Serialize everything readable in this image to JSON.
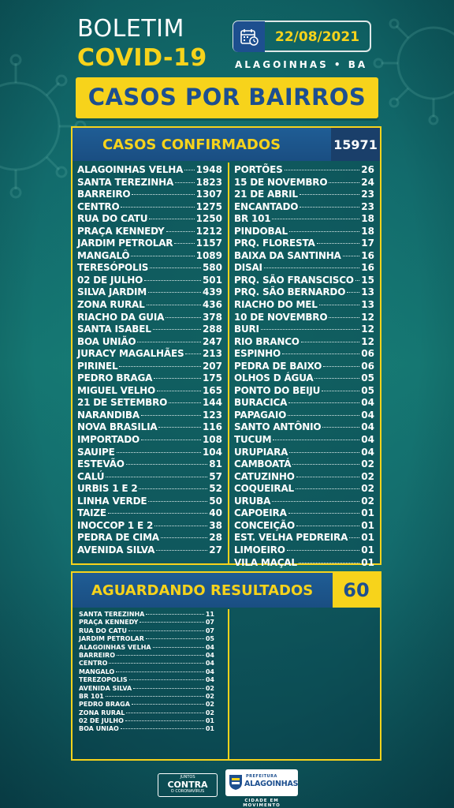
{
  "header": {
    "title": "BOLETIM",
    "subtitle": "COVID-19",
    "date": "22/08/2021",
    "city": "ALAGOINHAS • BA",
    "calendar_icon": "calendar-clock-icon"
  },
  "banner": {
    "label": "CASOS POR BAIRROS"
  },
  "confirmed": {
    "label": "CASOS CONFIRMADOS",
    "total": "15971",
    "left": [
      {
        "name": "ALAGOINHAS VELHA",
        "value": "1948"
      },
      {
        "name": "SANTA TEREZINHA",
        "value": "1823"
      },
      {
        "name": "BARREIRO",
        "value": "1307"
      },
      {
        "name": "CENTRO",
        "value": "1275"
      },
      {
        "name": "RUA DO CATU",
        "value": "1250"
      },
      {
        "name": "PRAÇA KENNEDY",
        "value": "1212"
      },
      {
        "name": "JARDIM PETROLAR",
        "value": "1157"
      },
      {
        "name": "MANGALÔ",
        "value": "1089"
      },
      {
        "name": "TERESÓPOLIS",
        "value": "580"
      },
      {
        "name": "02 DE JULHO",
        "value": "501"
      },
      {
        "name": "SILVA JARDIM",
        "value": "439"
      },
      {
        "name": "ZONA RURAL",
        "value": "436"
      },
      {
        "name": "RIACHO DA GUIA",
        "value": "378"
      },
      {
        "name": "SANTA ISABEL",
        "value": "288"
      },
      {
        "name": "BOA UNIÃO",
        "value": "247"
      },
      {
        "name": "JURACY MAGALHÃES",
        "value": "213"
      },
      {
        "name": "PIRINEL",
        "value": "207"
      },
      {
        "name": "PEDRO BRAGA",
        "value": "175"
      },
      {
        "name": "MIGUEL VELHO",
        "value": "165"
      },
      {
        "name": "21 DE SETEMBRO",
        "value": "144"
      },
      {
        "name": "NARANDIBA",
        "value": "123"
      },
      {
        "name": "NOVA BRASILIA",
        "value": "116"
      },
      {
        "name": "IMPORTADO",
        "value": "108"
      },
      {
        "name": "SAUIPE",
        "value": "104"
      },
      {
        "name": "ESTEVÃO",
        "value": "81"
      },
      {
        "name": "CALÚ",
        "value": "57"
      },
      {
        "name": "URBIS 1 E 2",
        "value": "52"
      },
      {
        "name": "LINHA VERDE",
        "value": "50"
      },
      {
        "name": "TAIZE",
        "value": "40"
      },
      {
        "name": "INOCCOP 1 E 2",
        "value": "38"
      },
      {
        "name": "PEDRA DE CIMA",
        "value": "28"
      },
      {
        "name": "AVENIDA SILVA",
        "value": "27"
      }
    ],
    "right": [
      {
        "name": "PORTÕES",
        "value": "26"
      },
      {
        "name": "15 DE NOVEMBRO",
        "value": "24"
      },
      {
        "name": "21 DE ABRIL",
        "value": "23"
      },
      {
        "name": "ENCANTADO",
        "value": "23"
      },
      {
        "name": "BR 101",
        "value": "18"
      },
      {
        "name": "PINDOBAL",
        "value": "18"
      },
      {
        "name": "PRQ. FLORESTA",
        "value": "17"
      },
      {
        "name": "BAIXA DA SANTINHA",
        "value": "16"
      },
      {
        "name": "DISAI",
        "value": "16"
      },
      {
        "name": "PRQ. SÃO FRANSCISCO",
        "value": "15"
      },
      {
        "name": "PRQ. SÃO BERNARDO",
        "value": "13"
      },
      {
        "name": "RIACHO DO MEL",
        "value": "13"
      },
      {
        "name": "10 DE NOVEMBRO",
        "value": "12"
      },
      {
        "name": "BURI",
        "value": "12"
      },
      {
        "name": "RIO BRANCO",
        "value": "12"
      },
      {
        "name": "ESPINHO",
        "value": "06"
      },
      {
        "name": "PEDRA DE BAIXO",
        "value": "06"
      },
      {
        "name": "OLHOS D ÁGUA",
        "value": "05"
      },
      {
        "name": "PONTO DO BEIJU",
        "value": "05"
      },
      {
        "name": "BURACICA",
        "value": "04"
      },
      {
        "name": "PAPAGAIO",
        "value": "04"
      },
      {
        "name": "SANTO ANTÔNIO",
        "value": "04"
      },
      {
        "name": "TUCUM",
        "value": "04"
      },
      {
        "name": "URUPIARA",
        "value": "04"
      },
      {
        "name": "CAMBOATÁ",
        "value": "02"
      },
      {
        "name": "CATUZINHO",
        "value": "02"
      },
      {
        "name": "COQUEIRAL",
        "value": "02"
      },
      {
        "name": "URUBA",
        "value": "02"
      },
      {
        "name": "CAPOEIRA",
        "value": "01"
      },
      {
        "name": "CONCEIÇÃO",
        "value": "01"
      },
      {
        "name": "EST. VELHA PEDREIRA",
        "value": "01"
      },
      {
        "name": "LIMOEIRO",
        "value": "01"
      },
      {
        "name": "VILA MAÇAL",
        "value": "01"
      }
    ]
  },
  "awaiting": {
    "label": "AGUARDANDO RESULTADOS",
    "total": "60",
    "rows": [
      {
        "name": "SANTA TEREZINHA",
        "value": "11"
      },
      {
        "name": "PRAÇA KENNEDY",
        "value": "07"
      },
      {
        "name": "RUA DO CATU",
        "value": "07"
      },
      {
        "name": "JARDIM PETROLAR",
        "value": "05"
      },
      {
        "name": "ALAGOINHAS VELHA",
        "value": "04"
      },
      {
        "name": "BARREIRO",
        "value": "04"
      },
      {
        "name": "CENTRO",
        "value": "04"
      },
      {
        "name": "MANGALO",
        "value": "04"
      },
      {
        "name": "TEREZOPOLIS",
        "value": "04"
      },
      {
        "name": "AVENIDA SILVA",
        "value": "02"
      },
      {
        "name": "BR 101",
        "value": "02"
      },
      {
        "name": "PEDRO BRAGA",
        "value": "02"
      },
      {
        "name": "ZONA RURAL",
        "value": "02"
      },
      {
        "name": "02 DE JULHO",
        "value": "01"
      },
      {
        "name": "BOA UNIAO",
        "value": "01"
      }
    ]
  },
  "footer": {
    "contra_top": "JUNTOS",
    "contra_main": "CONTRA",
    "contra_bottom": "O CORONAVÍRUS",
    "prefeitura_top": "PREFEITURA",
    "prefeitura_main": "ALAGOINHAS",
    "slogan": "CIDADE EM MOVIMENTO",
    "brand_yellow": "#f7d31b",
    "brand_blue": "#1d4f8f"
  }
}
